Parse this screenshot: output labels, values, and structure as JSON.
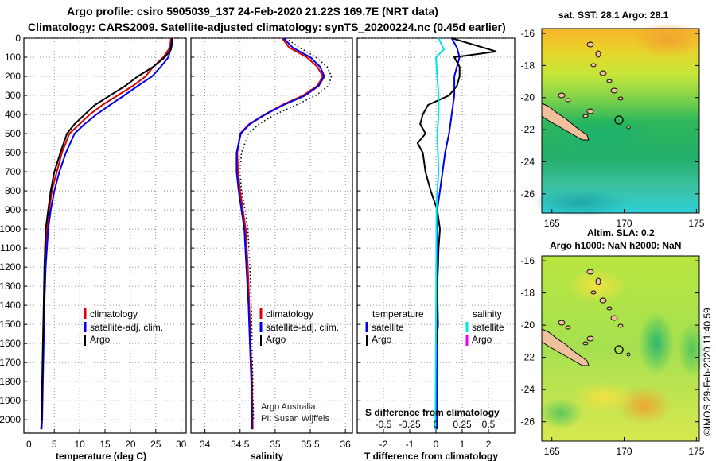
{
  "header": {
    "line1": "Argo profile: csiro 5905039_137 24-Feb-2020 21.22S 169.7E (NRT data)",
    "line2": "Climatology: CARS2009. Satellite-adjusted climatology: synTS_20200224.nc (0.45d earlier)"
  },
  "colors": {
    "climatology": "#e00000",
    "satellite": "#0000ee",
    "argo": "#000000",
    "sat_s": "#00e5e5",
    "argo_s": "#ee00ee"
  },
  "credits": {
    "line1": "Argo Australia",
    "line2": "PI: Susan Wijffels",
    "stamp": "©IMOS 29-Feb-2020 11:40:59"
  },
  "chart_data": [
    {
      "type": "line",
      "id": "temperature",
      "xlabel": "temperature (deg C)",
      "xlim": [
        -1,
        31
      ],
      "ylim": [
        2070,
        0
      ],
      "xticks": [
        0,
        5,
        10,
        15,
        20,
        25,
        30
      ],
      "yticks": [
        0,
        100,
        200,
        300,
        400,
        500,
        600,
        700,
        800,
        900,
        1000,
        1100,
        1200,
        1300,
        1400,
        1500,
        1600,
        1700,
        1800,
        1900,
        2000
      ],
      "legend": {
        "placement": "lower-right",
        "entries": [
          "climatology",
          "satellite-adj. clim.",
          "Argo"
        ]
      },
      "series": [
        {
          "name": "climatology",
          "color": "#e00000",
          "x": [
            28.0,
            27.8,
            26.5,
            24.5,
            23,
            20.5,
            17.5,
            14.5,
            12,
            10,
            8,
            6.5,
            5.5,
            4.5,
            4,
            3.6,
            3.2,
            3.0,
            2.85,
            2.7,
            2.55,
            2.35
          ],
          "y": [
            0,
            50,
            100,
            150,
            200,
            250,
            300,
            350,
            400,
            450,
            500,
            600,
            700,
            800,
            900,
            1000,
            1200,
            1400,
            1600,
            1800,
            2000,
            2050
          ]
        },
        {
          "name": "satellite-adj. clim.",
          "color": "#0000ee",
          "x": [
            28.2,
            28.0,
            27.5,
            26,
            24.3,
            21.5,
            18.8,
            16,
            13.3,
            11,
            9,
            7.3,
            6,
            5,
            4.3,
            3.8,
            3.3,
            3.05,
            2.9,
            2.75,
            2.6,
            2.5
          ],
          "y": [
            0,
            50,
            100,
            150,
            200,
            250,
            300,
            350,
            400,
            450,
            500,
            600,
            700,
            800,
            900,
            1000,
            1200,
            1400,
            1600,
            1800,
            2000,
            2050
          ]
        },
        {
          "name": "Argo",
          "color": "#000000",
          "x": [
            28.2,
            28.2,
            28.0,
            26.8,
            24.5,
            21.5,
            19,
            16,
            13,
            11,
            9,
            7.5,
            6.2,
            5,
            4.3,
            3.8,
            3.3,
            3.05,
            2.9,
            2.75,
            2.6,
            2.5
          ],
          "y": [
            0,
            30,
            60,
            100,
            150,
            200,
            250,
            300,
            350,
            400,
            450,
            500,
            600,
            700,
            800,
            900,
            1000,
            1200,
            1400,
            1600,
            1800,
            2000
          ]
        }
      ]
    },
    {
      "type": "line",
      "id": "salinity",
      "xlabel": "salinity",
      "xlim": [
        33.8,
        36.1
      ],
      "ylim": [
        2070,
        0
      ],
      "xticks": [
        34,
        34.5,
        35,
        35.5,
        36
      ],
      "legend": {
        "placement": "lower-right",
        "entries": [
          "climatology",
          "satellite-adj. clim.",
          "Argo"
        ]
      },
      "series": [
        {
          "name": "climatology",
          "color": "#e00000",
          "x": [
            35.1,
            35.2,
            35.45,
            35.6,
            35.68,
            35.6,
            35.4,
            35.1,
            34.85,
            34.63,
            34.5,
            34.46,
            34.47,
            34.5,
            34.54,
            34.58,
            34.61,
            34.63,
            34.65,
            34.67,
            34.68
          ],
          "y": [
            0,
            50,
            100,
            150,
            200,
            250,
            300,
            350,
            400,
            450,
            500,
            600,
            700,
            800,
            900,
            1000,
            1200,
            1400,
            1600,
            1800,
            2050
          ]
        },
        {
          "name": "satellite-adj. clim.",
          "color": "#0000ee",
          "x": [
            35.12,
            35.25,
            35.5,
            35.64,
            35.7,
            35.62,
            35.43,
            35.12,
            34.86,
            34.64,
            34.51,
            34.45,
            34.45,
            34.48,
            34.52,
            34.56,
            34.59,
            34.62,
            34.64,
            34.66,
            34.67
          ],
          "y": [
            0,
            50,
            100,
            150,
            200,
            250,
            300,
            350,
            400,
            450,
            500,
            600,
            700,
            800,
            900,
            1000,
            1200,
            1400,
            1600,
            1800,
            2050
          ]
        },
        {
          "name": "Argo",
          "color": "#000000",
          "dotted": true,
          "x": [
            35.15,
            35.35,
            35.58,
            35.74,
            35.8,
            35.76,
            35.58,
            35.3,
            35.0,
            34.77,
            34.62,
            34.52,
            34.5,
            34.52,
            34.57,
            34.61,
            34.64,
            34.66,
            34.67,
            34.68,
            34.69
          ],
          "y": [
            0,
            50,
            100,
            150,
            200,
            250,
            300,
            350,
            400,
            450,
            500,
            600,
            700,
            800,
            900,
            1000,
            1200,
            1400,
            1600,
            1800,
            2000
          ]
        }
      ]
    },
    {
      "type": "line",
      "id": "difference",
      "xlabel": "T difference from climatology",
      "xlabel_top": "S difference from climatology",
      "xlim": [
        -3,
        3
      ],
      "ylim": [
        2070,
        0
      ],
      "xticks": [
        -2,
        -1,
        0,
        1,
        2
      ],
      "xticks_top": [
        "-0.5",
        "-0.25",
        "0",
        "0.25",
        "0.5"
      ],
      "legend": {
        "placement": "lower-center",
        "temperature_title": "temperature",
        "salinity_title": "salinity",
        "entries": [
          "satellite",
          "Argo",
          "satellite",
          "Argo"
        ]
      },
      "series": [
        {
          "name": "satellite",
          "color": "#0000ee",
          "x": [
            0.6,
            0.8,
            0.9,
            0.8,
            0.7,
            0.7,
            0.6,
            0.5,
            0.35,
            0.25,
            0.15,
            0.05,
            0.05,
            0.05,
            0.05,
            0.03
          ],
          "y": [
            0,
            50,
            100,
            150,
            200,
            300,
            400,
            500,
            600,
            700,
            800,
            900,
            1000,
            1300,
            1600,
            2050
          ]
        },
        {
          "name": "Argo",
          "color": "#000000",
          "x": [
            0.6,
            2.3,
            0.7,
            0.9,
            0.9,
            0.8,
            0.5,
            -0.3,
            -0.5,
            -0.6,
            -0.4,
            -0.7,
            -0.5,
            -0.4,
            -0.2,
            0.05,
            0.15,
            0.1,
            0.08,
            0.05,
            0.08,
            0.03
          ],
          "y": [
            0,
            70,
            100,
            150,
            200,
            250,
            300,
            350,
            400,
            450,
            500,
            550,
            600,
            700,
            800,
            900,
            1000,
            1100,
            1200,
            1300,
            1500,
            1600
          ]
        },
        {
          "name": "satellite",
          "color": "#00e5e5",
          "x": [
            0.1,
            0.3,
            0.0,
            0.05,
            0.1,
            0.1,
            0.05,
            0.1,
            0.05,
            0.02,
            0.0,
            -0.02
          ],
          "y": [
            0,
            60,
            100,
            200,
            300,
            400,
            500,
            700,
            800,
            900,
            1500,
            2050
          ]
        }
      ]
    },
    {
      "type": "heatmap",
      "id": "sst_map",
      "title": "sat. SST: 28.1 Argo: 28.1",
      "xticks": [
        165,
        170,
        175
      ],
      "yticks": [
        -16,
        -18,
        -20,
        -22,
        -24,
        -26
      ],
      "xlim": [
        164.3,
        175.2
      ],
      "ylim": [
        -27.2,
        -15.7
      ],
      "profile_marker": {
        "lon": 169.7,
        "lat": -21.22
      }
    },
    {
      "type": "heatmap",
      "id": "sla_map",
      "title": "Altim. SLA: 0.2",
      "subtitle": "Argo h1000: NaN h2000: NaN",
      "xticks": [
        165,
        170,
        175
      ],
      "yticks": [
        -16,
        -18,
        -20,
        -22,
        -24,
        -26
      ],
      "xlim": [
        164.3,
        175.2
      ],
      "ylim": [
        -27.2,
        -15.7
      ],
      "profile_marker": {
        "lon": 169.7,
        "lat": -21.22
      }
    }
  ]
}
